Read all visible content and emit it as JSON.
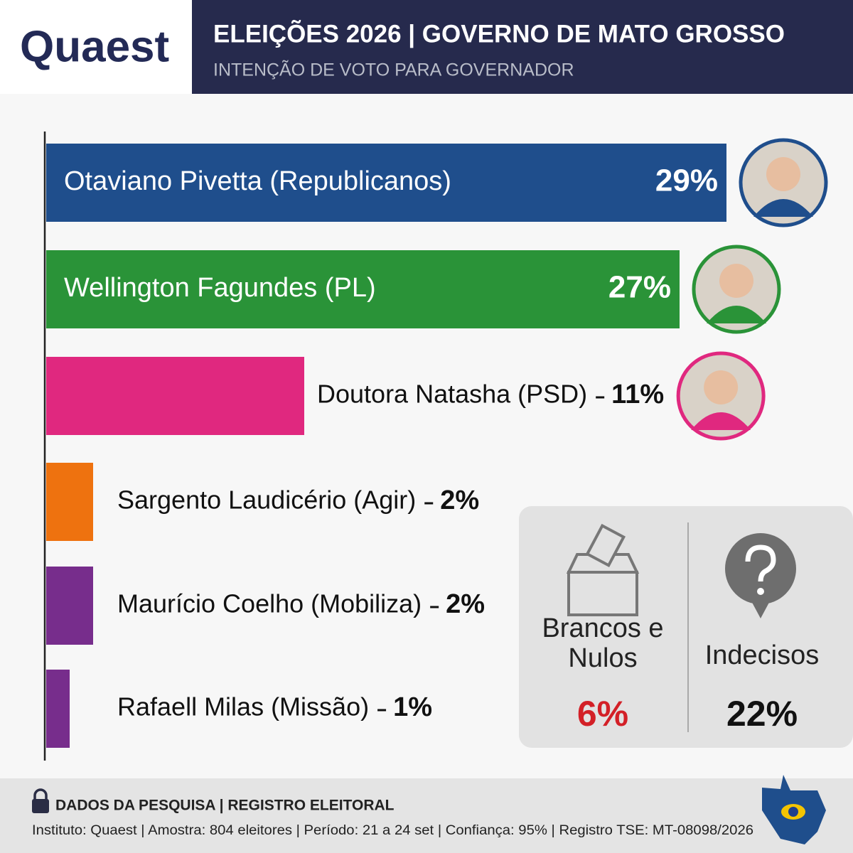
{
  "logo": "Quaest",
  "chart_data": {
    "type": "bar",
    "title": "ELEIÇÕES 2026 | GOVERNO DE MATO GROSSO",
    "subtitle": "INTENÇÃO DE VOTO PARA GOVERNADOR",
    "categories": [
      "Otaviano Pivetta (Republicanos)",
      "Wellington Fagundes (PL)",
      "Doutora Natasha (PSD)",
      "Sargento Laudicério (Agir)",
      "Maurício Coelho (Mobiliza)",
      "Rafaell Milas (Missão)"
    ],
    "values": [
      29,
      27,
      11,
      2,
      2,
      1
    ],
    "value_labels": [
      "29%",
      "27%",
      "11%",
      "2%",
      "2%",
      "1%"
    ],
    "colors": [
      "#1f4e8c",
      "#2a9338",
      "#e0287f",
      "#ee720f",
      "#772d8c",
      "#772d8c"
    ],
    "others": [
      {
        "label": "Brancos e Nulos",
        "value": 6,
        "value_label": "6%",
        "color": "#d32027"
      },
      {
        "label": "Indecisos",
        "value": 22,
        "value_label": "22%",
        "color": "#111111"
      }
    ]
  },
  "footer": {
    "heading": "DADOS DA PESQUISA | REGISTRO ELEITORAL",
    "details": "Instituto: Quaest | Amostra: 804 eleitores | Período: 21 a 24 set | Confiança: 95% | Registro TSE: MT-08098/2026"
  }
}
